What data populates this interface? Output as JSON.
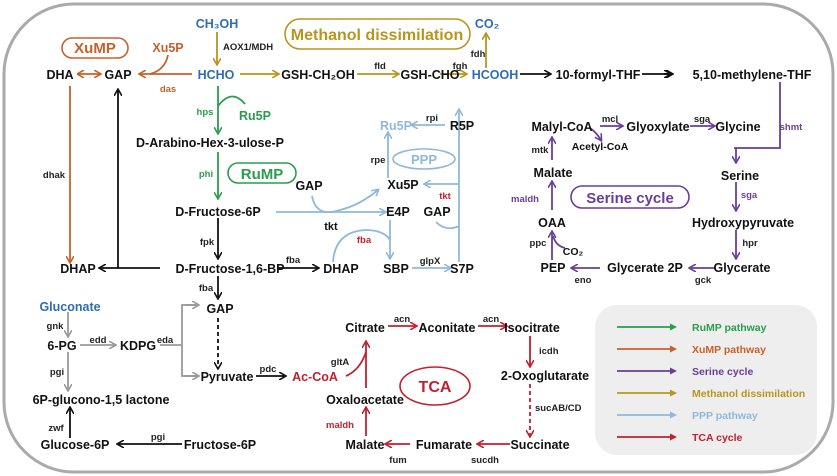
{
  "colors": {
    "ruMP": "#2a9d4f",
    "xuMP": "#c9602a",
    "serine": "#6a3d9a",
    "methanol": "#b8961e",
    "ppp": "#8fb8dc",
    "tca": "#c0212f",
    "substrate": "#2e6db4"
  },
  "boxes": {
    "xump": "XuMP",
    "methanol": "Methanol dissimilation",
    "rump": "RuMP",
    "ppp": "PPP",
    "serine": "Serine cycle",
    "tca": "TCA"
  },
  "metabolites": {
    "ch3oh": "CH₃OH",
    "hcho": "HCHO",
    "dha": "DHA",
    "gap1": "GAP",
    "xu5p_o": "Xu5P",
    "gsh_ch2oh": "GSH-CH₂OH",
    "gsh_cho": "GSH-CHO",
    "hcooh": "HCOOH",
    "co2": "CO₂",
    "formyl_thf": "10-formyl-THF",
    "methylene_thf": "5,10-methylene-THF",
    "ru5p_g": "Ru5P",
    "arabino": "D-Arabino-Hex-3-ulose-P",
    "f6p": "D-Fructose-6P",
    "fbp": "D-Fructose-1,6-BP",
    "dhap1": "DHAP",
    "dhap2": "DHAP",
    "gap2": "GAP",
    "ru5p_b": "Ru5P",
    "r5p": "R5P",
    "xu5p": "Xu5P",
    "gap3": "GAP",
    "e4p": "E4P",
    "gap4": "GAP",
    "sbp": "SBP",
    "s7p": "S7P",
    "malyl_coa": "Malyl-CoA",
    "glyoxylate": "Glyoxylate",
    "glycine": "Glycine",
    "acetyl_coa": "Acetyl-CoA",
    "malate_s": "Malate",
    "serine": "Serine",
    "oaa": "OAA",
    "hydroxypyruvate": "Hydroxypyruvate",
    "co2_s": "CO₂",
    "pep": "PEP",
    "glycerate2p": "Glycerate 2P",
    "glycerate": "Glycerate",
    "gluconate": "Gluconate",
    "pg6": "6-PG",
    "kdpg": "KDPG",
    "pyruvate": "Pyruvate",
    "accoa": "Ac-CoA",
    "lactone": "6P-glucono-1,5 lactone",
    "g6p": "Glucose-6P",
    "fru6p": "Fructose-6P",
    "citrate": "Citrate",
    "aconitate": "Aconitate",
    "isocitrate": "Isocitrate",
    "oxoglutarate": "2-Oxoglutarate",
    "oxaloacetate": "Oxaloacetate",
    "malate_t": "Malate",
    "fumarate": "Fumarate",
    "succinate": "Succinate"
  },
  "enzymes": {
    "aox": "AOX1/MDH",
    "das": "das",
    "fld": "fld",
    "fgh": "fgh",
    "fdh": "fdh",
    "hps": "hps",
    "phi": "phi",
    "fpk": "fpk",
    "fba1": "fba",
    "fba2": "fba",
    "dhak": "dhak",
    "rpi": "rpi",
    "rpe": "rpe",
    "tkt1": "tkt",
    "tkt2": "tkt",
    "fba_r": "fba",
    "glpx": "glpX",
    "mcl": "mcl",
    "sga1": "sga",
    "shmt": "shmt",
    "mtk": "mtk",
    "maldh_s": "maldh",
    "sga2": "sga",
    "ppc": "ppc",
    "hpr": "hpr",
    "eno": "eno",
    "gck": "gck",
    "gnk": "gnk",
    "edd": "edd",
    "eda": "eda",
    "pgi1": "pgi",
    "zwf": "zwf",
    "pgi2": "pgi",
    "pdc": "pdc",
    "glta": "gltA",
    "acn1": "acn",
    "acn2": "acn",
    "icdh": "icdh",
    "sucab": "sucAB/CD",
    "maldh_t": "maldh",
    "fum": "fum",
    "sucdh": "sucdh"
  },
  "legend": [
    {
      "label": "RuMP pathway",
      "color": "#2a9d4f"
    },
    {
      "label": "XuMP pathway",
      "color": "#c9602a"
    },
    {
      "label": "Serine cycle",
      "color": "#6a3d9a"
    },
    {
      "label": "Methanol dissimilation",
      "color": "#b8961e"
    },
    {
      "label": "PPP pathway",
      "color": "#8fb8dc"
    },
    {
      "label": "TCA cycle",
      "color": "#c0212f"
    }
  ]
}
